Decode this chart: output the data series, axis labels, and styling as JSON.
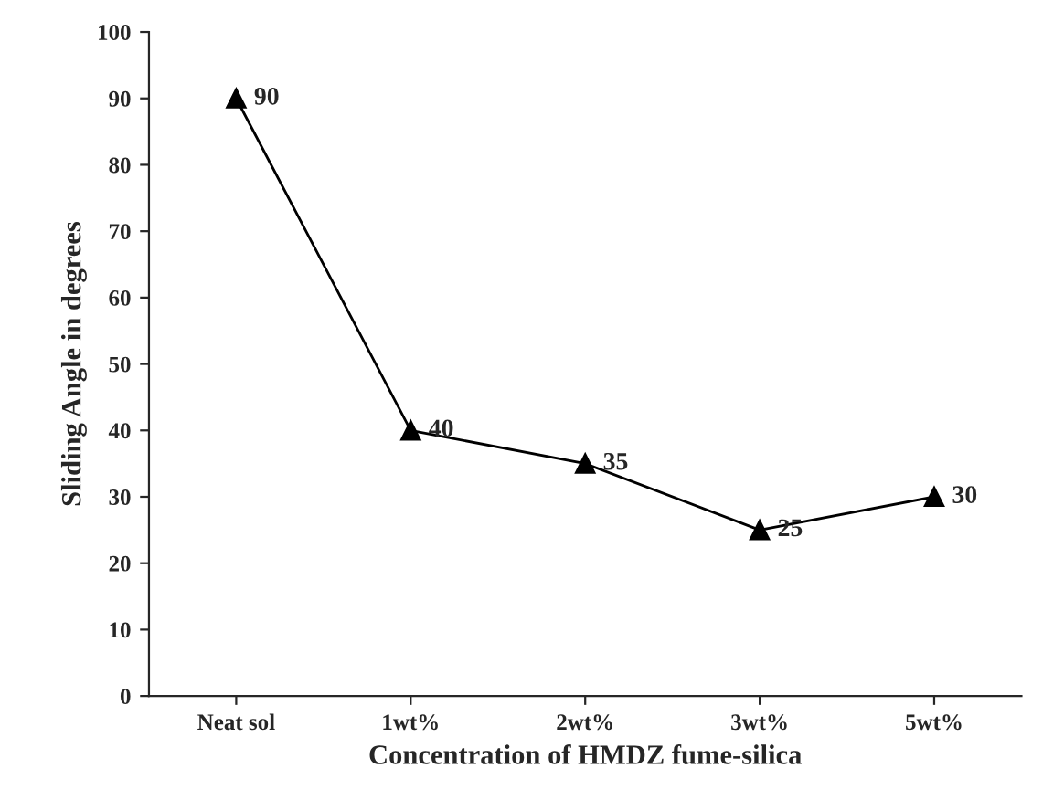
{
  "chart_data": {
    "type": "line",
    "xlabel": "Concentration of HMDZ fume-silica",
    "ylabel": "Sliding Angle in degrees",
    "categories": [
      "Neat sol",
      "1wt%",
      "2wt%",
      "3wt%",
      "5wt%"
    ],
    "series": [
      {
        "color": "#000000",
        "values": [
          90,
          40,
          35,
          25,
          30
        ]
      }
    ],
    "ylim": [
      0,
      100
    ],
    "yticks": [
      0,
      10,
      20,
      30,
      40,
      50,
      60,
      70,
      80,
      90,
      100
    ],
    "marker": "triangle",
    "line_style": "solid",
    "data_labels": true,
    "grid": false,
    "legend": false
  }
}
